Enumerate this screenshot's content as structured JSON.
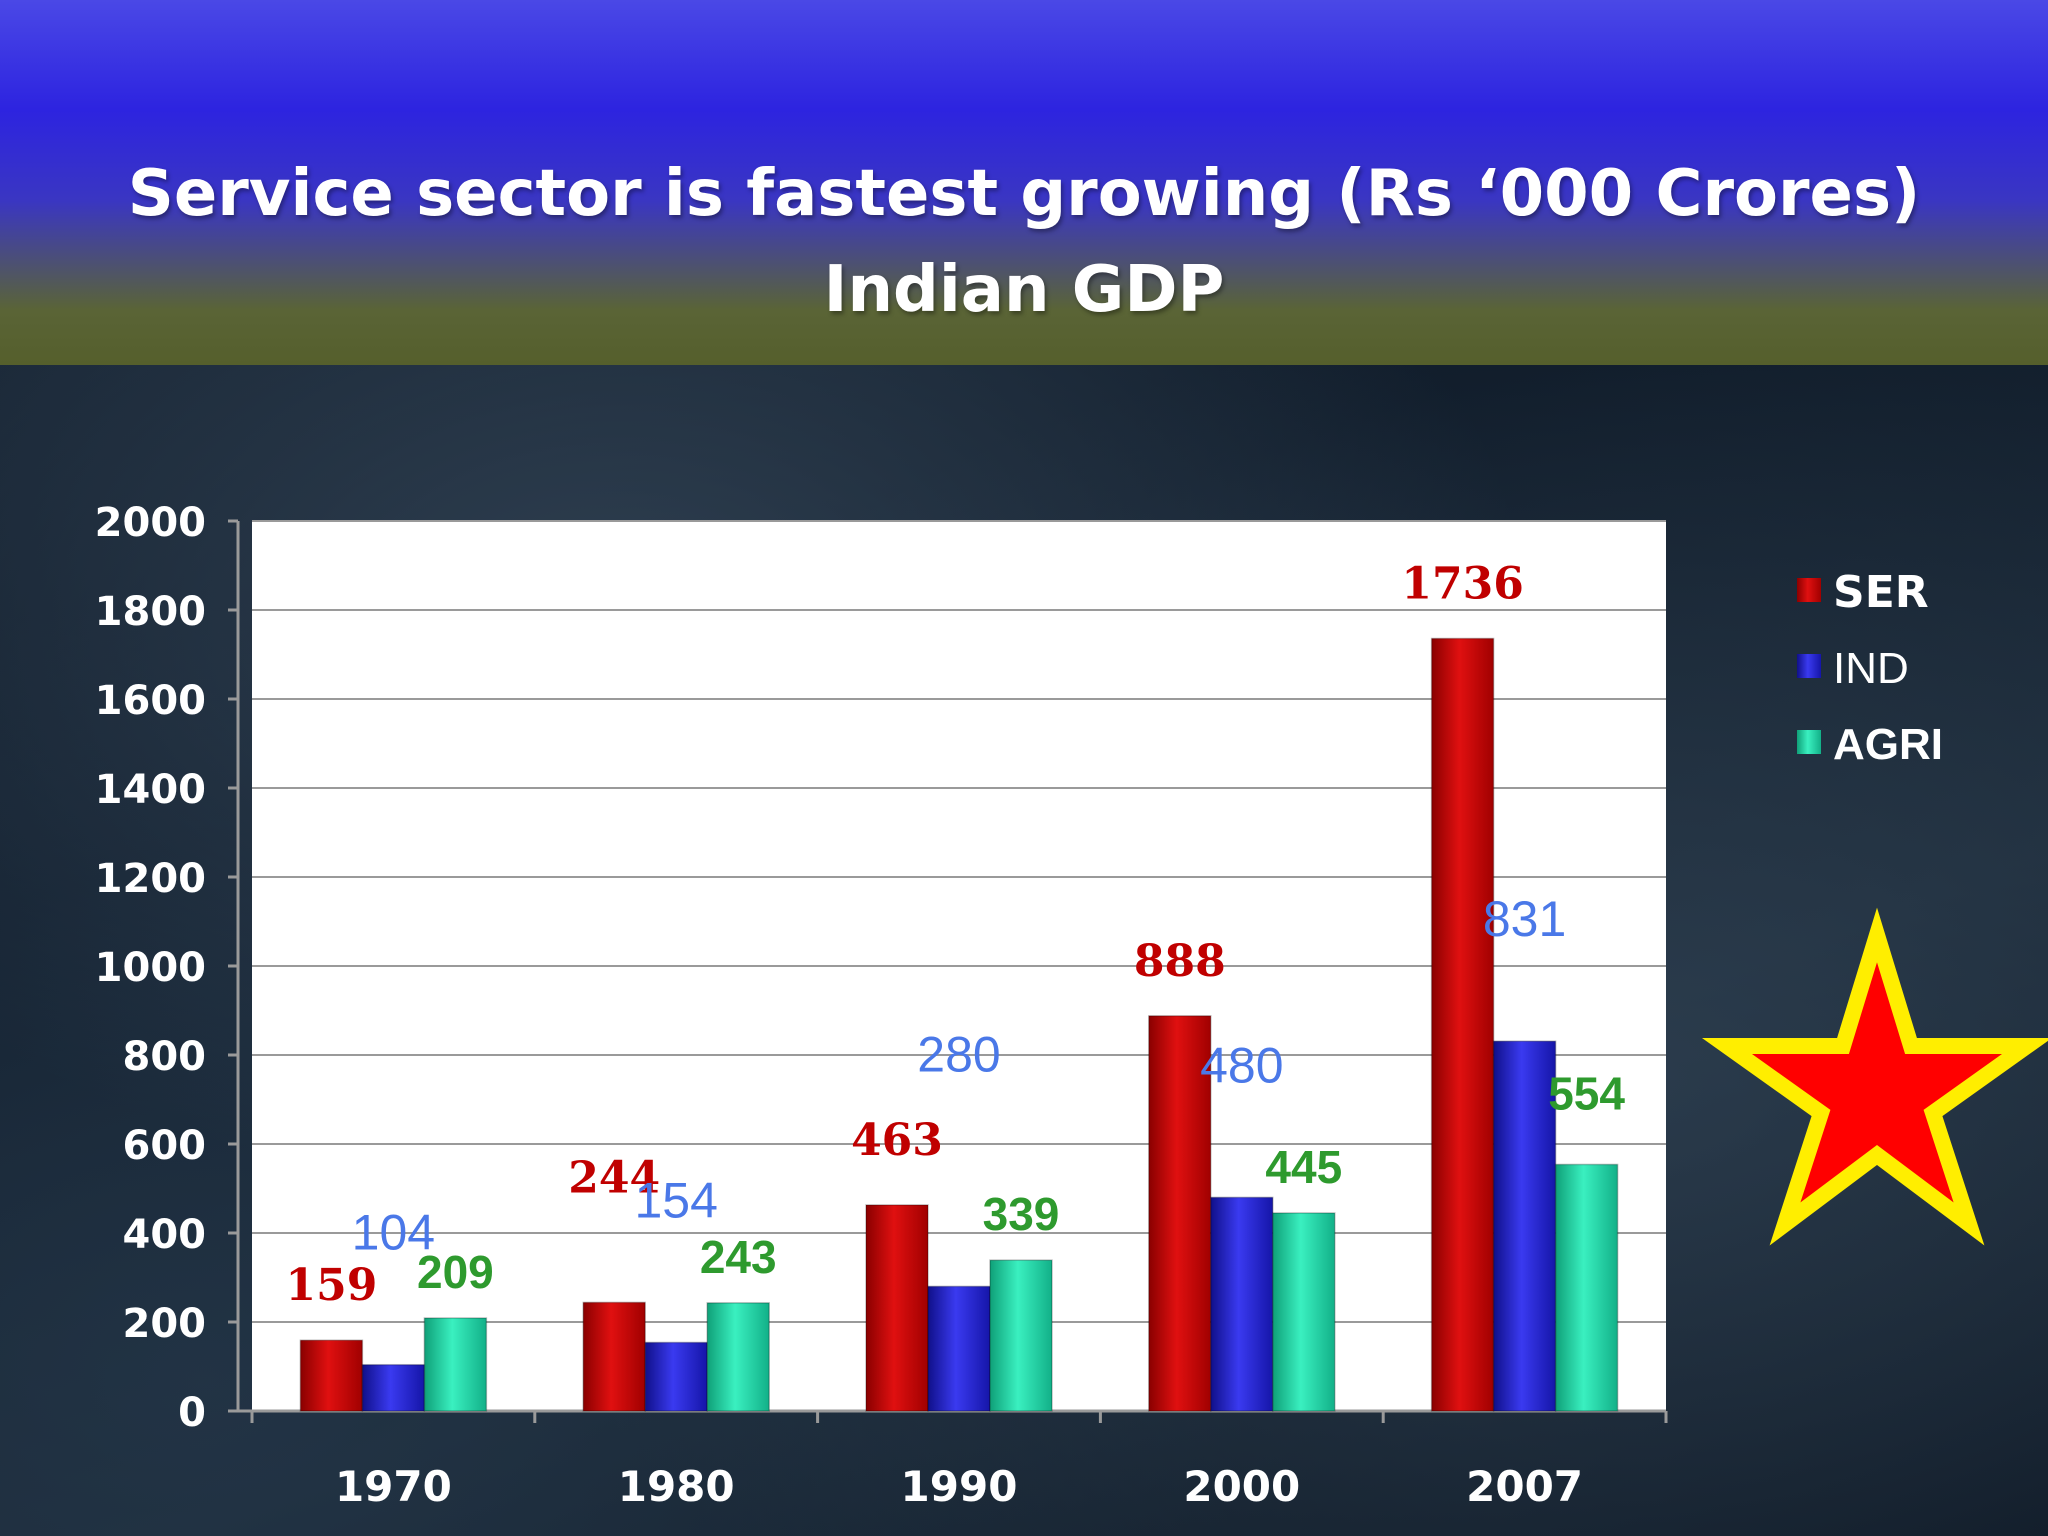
{
  "title": "Service sector is fastest  growing  (Rs ‘000 Crores)",
  "subtitle": "Indian GDP",
  "chart_data": {
    "type": "bar",
    "categories": [
      "1970",
      "1980",
      "1990",
      "2000",
      "2007"
    ],
    "series": [
      {
        "name": "SER",
        "values": [
          159,
          244,
          463,
          888,
          1736
        ],
        "color": "#cc0000",
        "label_color": "#c00000"
      },
      {
        "name": "IND",
        "values": [
          104,
          154,
          280,
          480,
          831
        ],
        "color": "#2222dd",
        "label_color": "#4a78e8"
      },
      {
        "name": "AGRI",
        "values": [
          209,
          243,
          339,
          445,
          554
        ],
        "color": "#1fd3a0",
        "label_color": "#2e9a2e"
      }
    ],
    "y_ticks": [
      "0",
      "200",
      "400",
      "600",
      "800",
      "1000",
      "1200",
      "1400",
      "1600",
      "1800",
      "2000"
    ],
    "ylim": [
      0,
      2000
    ],
    "grid": true,
    "legend_position": "right",
    "data_labels": true
  },
  "decoration": {
    "star_icon": "red star with yellow outline",
    "fill": "#ff0000",
    "stroke": "#ffee00"
  }
}
